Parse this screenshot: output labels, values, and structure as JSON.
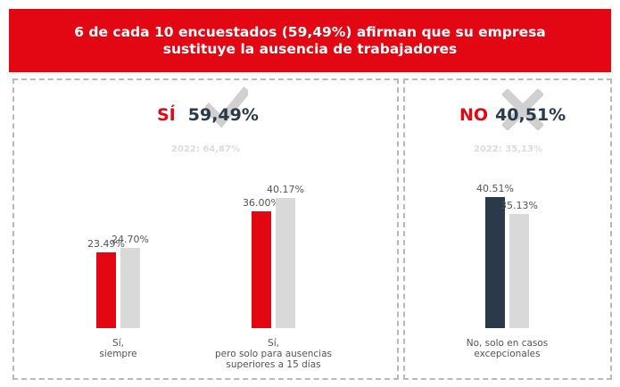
{
  "header": {
    "line1": "6 de cada 10 encuestados (59,49%) afirman que su empresa",
    "line2": "sustituye la ausencia de trabajadores"
  },
  "colors": {
    "red": "#e30613",
    "dark": "#2b3a4a",
    "gray": "#d9d9d9",
    "mark": "#d0d0d0"
  },
  "panels": {
    "si": {
      "answer": "SÍ",
      "percent": "59,49%",
      "prev": "2022: 64,87%",
      "mark_icon": "checkmark-icon"
    },
    "no": {
      "answer": "NO",
      "percent": "40,51%",
      "prev": "2022: 35,13%",
      "mark_icon": "x-mark-icon"
    }
  },
  "chart_data": {
    "type": "bar",
    "title": "6 de cada 10 encuestados (59,49%) afirman que su empresa sustituye la ausencia de trabajadores",
    "ylim": [
      0,
      45
    ],
    "grid": false,
    "categories": [
      {
        "label_lines": [
          "Sí,",
          "siempre"
        ],
        "values": [
          23.49,
          24.7
        ],
        "labels": [
          "23.49%",
          "24.70%"
        ],
        "colors": [
          "#e30613",
          "#d9d9d9"
        ]
      },
      {
        "label_lines": [
          "Sí,",
          "pero solo para ausencias",
          "superiores a 15 días"
        ],
        "values": [
          36.0,
          40.17
        ],
        "labels": [
          "36.00%",
          "40.17%"
        ],
        "colors": [
          "#e30613",
          "#d9d9d9"
        ]
      },
      {
        "label_lines": [
          "No, solo en casos",
          "excepcionales"
        ],
        "values": [
          40.51,
          35.13
        ],
        "labels": [
          "40.51%",
          "35.13%"
        ],
        "colors": [
          "#2b3a4a",
          "#d9d9d9"
        ]
      }
    ]
  }
}
